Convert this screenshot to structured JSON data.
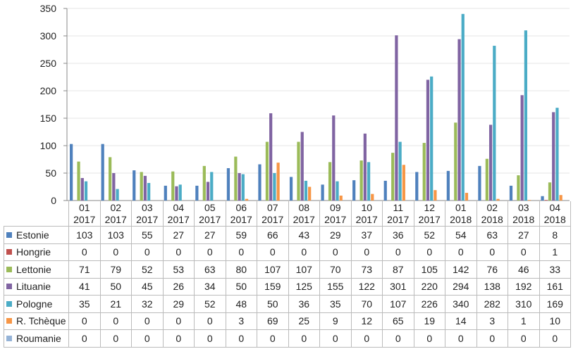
{
  "chart_data": {
    "type": "bar",
    "categories": [
      [
        "01",
        "2017"
      ],
      [
        "02",
        "2017"
      ],
      [
        "03",
        "2017"
      ],
      [
        "04",
        "2017"
      ],
      [
        "05",
        "2017"
      ],
      [
        "06",
        "2017"
      ],
      [
        "07",
        "2017"
      ],
      [
        "08",
        "2017"
      ],
      [
        "09",
        "2017"
      ],
      [
        "10",
        "2017"
      ],
      [
        "11",
        "2017"
      ],
      [
        "12",
        "2017"
      ],
      [
        "01",
        "2018"
      ],
      [
        "02",
        "2018"
      ],
      [
        "03",
        "2018"
      ],
      [
        "04",
        "2018"
      ]
    ],
    "series": [
      {
        "name": "Estonie",
        "color": "#4f81bd",
        "values": [
          103,
          103,
          55,
          27,
          27,
          59,
          66,
          43,
          29,
          37,
          36,
          52,
          54,
          63,
          27,
          8
        ]
      },
      {
        "name": "Hongrie",
        "color": "#c0504d",
        "values": [
          0,
          0,
          0,
          0,
          0,
          0,
          0,
          0,
          0,
          0,
          0,
          0,
          0,
          0,
          0,
          1
        ]
      },
      {
        "name": "Lettonie",
        "color": "#9bbb59",
        "values": [
          71,
          79,
          52,
          53,
          63,
          80,
          107,
          107,
          70,
          73,
          87,
          105,
          142,
          76,
          46,
          33
        ]
      },
      {
        "name": "Lituanie",
        "color": "#8064a2",
        "values": [
          41,
          50,
          45,
          26,
          34,
          50,
          159,
          125,
          155,
          122,
          301,
          220,
          294,
          138,
          192,
          161
        ]
      },
      {
        "name": "Pologne",
        "color": "#4bacc6",
        "values": [
          35,
          21,
          32,
          29,
          52,
          48,
          50,
          36,
          35,
          70,
          107,
          226,
          340,
          282,
          310,
          169
        ]
      },
      {
        "name": "R. Tchèque",
        "color": "#f79646",
        "values": [
          0,
          0,
          0,
          0,
          0,
          3,
          69,
          25,
          9,
          12,
          65,
          19,
          14,
          3,
          1,
          10
        ]
      },
      {
        "name": "Roumanie",
        "color": "#95b3d7",
        "values": [
          0,
          0,
          0,
          0,
          0,
          0,
          0,
          0,
          0,
          0,
          0,
          0,
          0,
          0,
          0,
          0
        ]
      }
    ],
    "yticks": [
      0,
      50,
      100,
      150,
      200,
      250,
      300,
      350
    ],
    "ylim": [
      0,
      350
    ],
    "grid": true,
    "legend": "data-table"
  }
}
